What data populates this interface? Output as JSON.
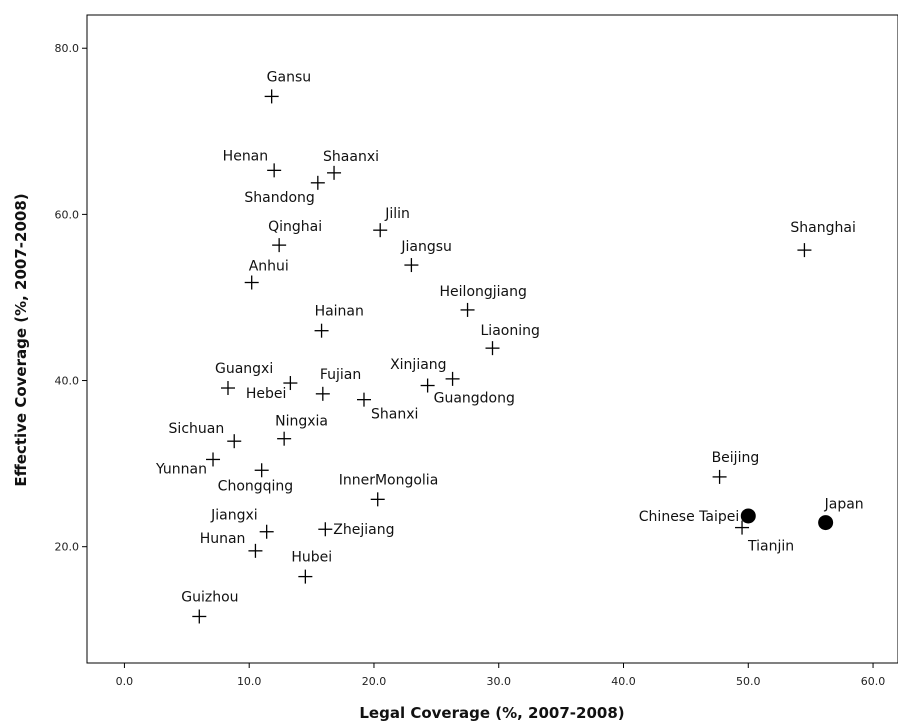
{
  "chart_data": {
    "type": "scatter",
    "xlabel": "Legal Coverage (%, 2007-2008)",
    "ylabel": "Effective Coverage (%, 2007-2008)",
    "xlim": [
      -3,
      62
    ],
    "ylim": [
      6,
      84
    ],
    "xticks": [
      0,
      10,
      20,
      30,
      40,
      50,
      60
    ],
    "yticks": [
      20,
      40,
      60,
      80
    ],
    "xtick_labels": [
      "0.0",
      "10.0",
      "20.0",
      "30.0",
      "40.0",
      "50.0",
      "60.0"
    ],
    "ytick_labels": [
      "20.0",
      "40.0",
      "60.0",
      "80.0"
    ],
    "grid": false,
    "series": [
      {
        "marker": "cross",
        "points": [
          {
            "label": "Gansu",
            "x": 11.8,
            "y": 74.2
          },
          {
            "label": "Henan",
            "x": 12.0,
            "y": 65.3
          },
          {
            "label": "Shaanxi",
            "x": 16.8,
            "y": 65.0
          },
          {
            "label": "Shandong",
            "x": 15.5,
            "y": 63.8
          },
          {
            "label": "Jilin",
            "x": 20.5,
            "y": 58.1
          },
          {
            "label": "Qinghai",
            "x": 12.4,
            "y": 56.3
          },
          {
            "label": "Jiangsu",
            "x": 23.0,
            "y": 53.9
          },
          {
            "label": "Anhui",
            "x": 10.2,
            "y": 51.8
          },
          {
            "label": "Shanghai",
            "x": 54.5,
            "y": 55.7
          },
          {
            "label": "Heilongjiang",
            "x": 27.5,
            "y": 48.5
          },
          {
            "label": "Hainan",
            "x": 15.8,
            "y": 46.0
          },
          {
            "label": "Liaoning",
            "x": 29.5,
            "y": 43.9
          },
          {
            "label": "Xinjiang",
            "x": 26.3,
            "y": 40.2
          },
          {
            "label": "Guangxi",
            "x": 8.3,
            "y": 39.1
          },
          {
            "label": "Hebei",
            "x": 13.3,
            "y": 39.7
          },
          {
            "label": "Fujian",
            "x": 15.9,
            "y": 38.4
          },
          {
            "label": "Guangdong",
            "x": 24.3,
            "y": 39.4
          },
          {
            "label": "Shanxi",
            "x": 19.2,
            "y": 37.7
          },
          {
            "label": "Sichuan",
            "x": 8.8,
            "y": 32.7
          },
          {
            "label": "Ningxia",
            "x": 12.8,
            "y": 33.0
          },
          {
            "label": "Yunnan",
            "x": 7.1,
            "y": 30.5
          },
          {
            "label": "Chongqing",
            "x": 11.0,
            "y": 29.2
          },
          {
            "label": "InnerMongolia",
            "x": 20.3,
            "y": 25.7
          },
          {
            "label": "Beijing",
            "x": 47.7,
            "y": 28.4
          },
          {
            "label": "Jiangxi",
            "x": 11.4,
            "y": 21.8
          },
          {
            "label": "Zhejiang",
            "x": 16.1,
            "y": 22.1
          },
          {
            "label": "Hunan",
            "x": 10.5,
            "y": 19.5
          },
          {
            "label": "Tianjin",
            "x": 49.5,
            "y": 22.3
          },
          {
            "label": "Hubei",
            "x": 14.5,
            "y": 16.4
          },
          {
            "label": "Guizhou",
            "x": 6.0,
            "y": 11.6
          }
        ]
      },
      {
        "marker": "dot",
        "points": [
          {
            "label": "Chinese Taipei",
            "x": 50.0,
            "y": 23.7
          },
          {
            "label": "Japan",
            "x": 56.2,
            "y": 22.9
          }
        ]
      }
    ]
  }
}
